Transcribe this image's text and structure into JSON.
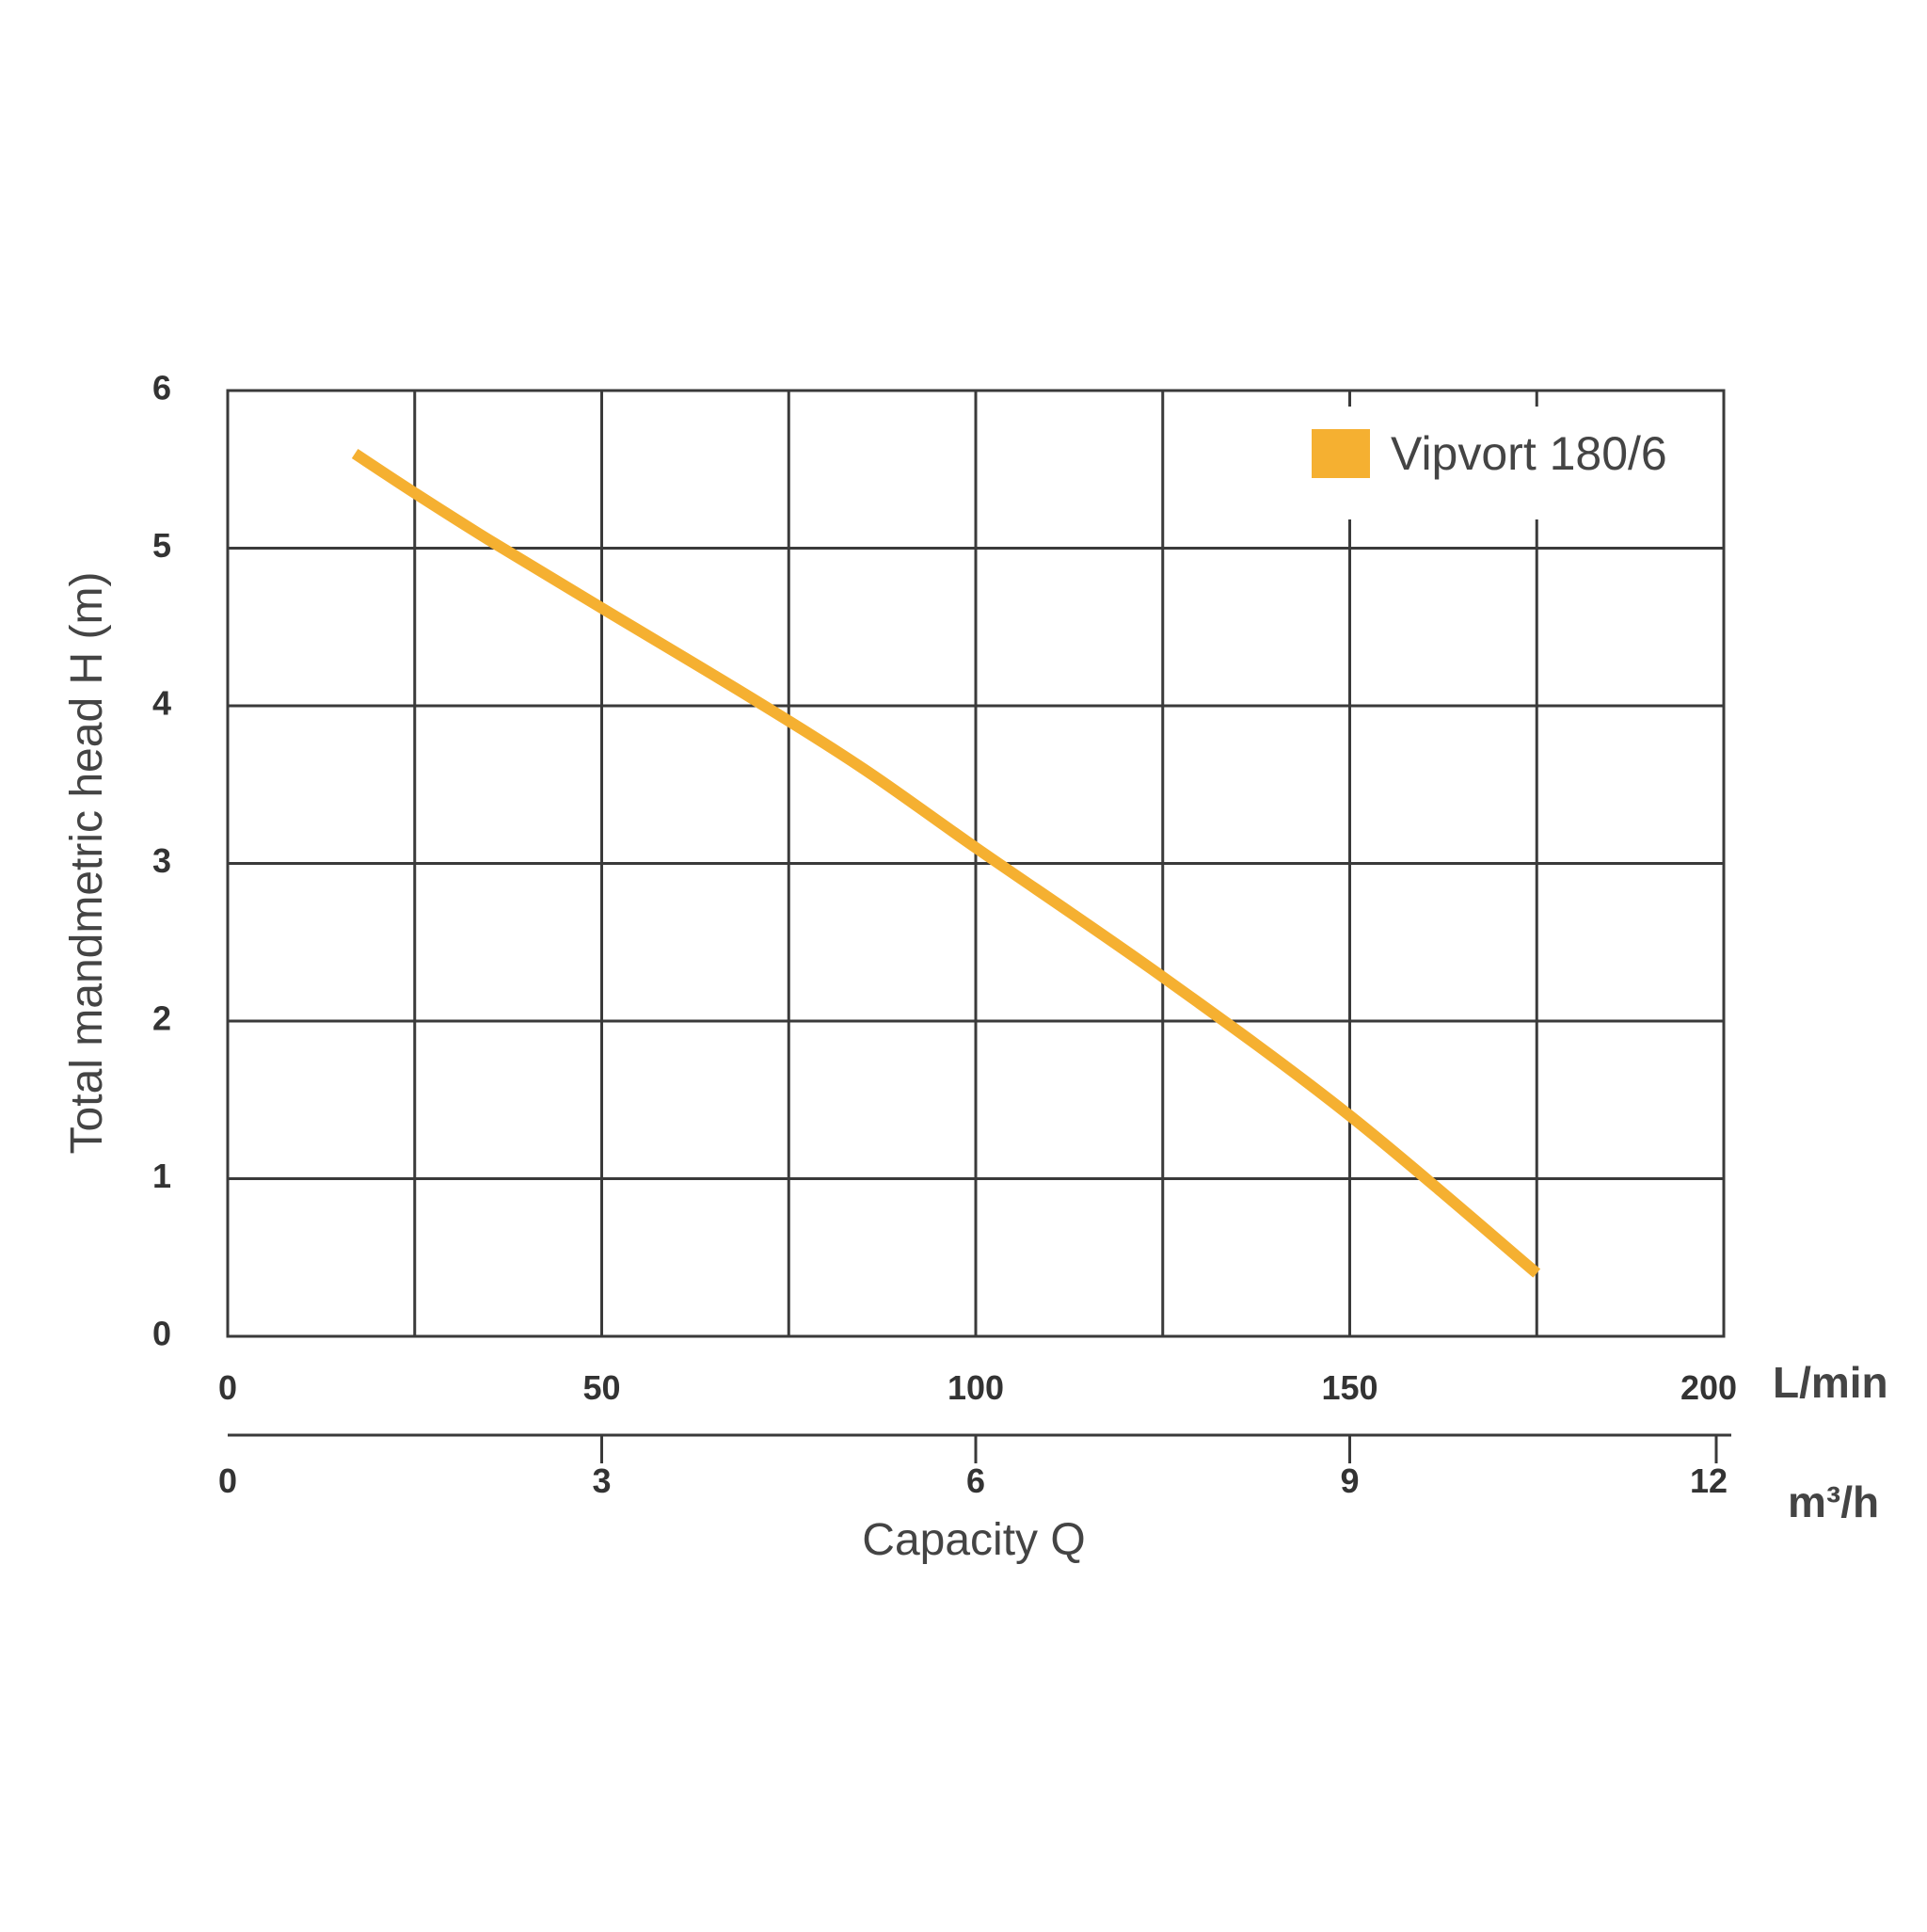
{
  "chart_data": {
    "type": "line",
    "title": "",
    "xlabel": "Capacity Q",
    "ylabel": "Total mandmetric head H (m)",
    "x_unit": "L/min",
    "x2_unit": "m³/h",
    "xlim": [
      0,
      200
    ],
    "x2lim": [
      0,
      12
    ],
    "ylim": [
      0,
      6
    ],
    "x_ticks": [
      0,
      50,
      100,
      150,
      200
    ],
    "x_tick_labels": [
      "0",
      "50",
      "100",
      "150",
      "200"
    ],
    "x2_ticks": [
      0,
      3,
      6,
      9,
      12
    ],
    "x2_tick_labels": [
      "0",
      "3",
      "6",
      "9",
      "12"
    ],
    "y_ticks": [
      0,
      1,
      2,
      3,
      4,
      5,
      6
    ],
    "y_tick_labels": [
      "0",
      "1",
      "2",
      "3",
      "4",
      "5",
      "6"
    ],
    "grid": true,
    "legend_position": "top-right",
    "series": [
      {
        "name": "Vipvort 180/6",
        "color": "#F5B031",
        "x": [
          17,
          25,
          35,
          50,
          70,
          85,
          100,
          125,
          150,
          175
        ],
        "y": [
          5.6,
          5.35,
          5.05,
          4.62,
          4.05,
          3.6,
          3.1,
          2.28,
          1.4,
          0.4
        ]
      }
    ]
  }
}
